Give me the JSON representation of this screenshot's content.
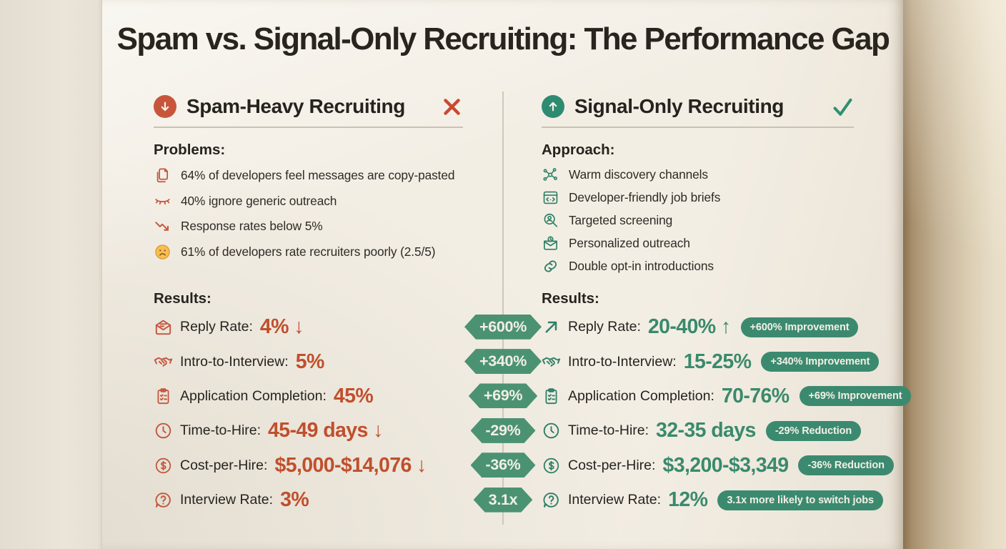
{
  "page_title": "Spam vs. Signal-Only Recruiting: The Performance Gap",
  "colors": {
    "paper": "#f3eee4",
    "accent_red": "#c7553c",
    "value_red": "#c04f2d",
    "accent_green": "#2e8b72",
    "value_green": "#3a8a6c",
    "badge_green": "#4b9273",
    "pill_green": "#3b8a70",
    "title_text": "#29241e"
  },
  "left": {
    "title": "Spam-Heavy Recruiting",
    "header_icon": "arrow-down-circle",
    "status_icon": "x-mark",
    "section1_title": "Problems:",
    "problems": [
      {
        "icon": "copy-document",
        "text": "64% of developers feel messages are copy-pasted"
      },
      {
        "icon": "closed-eye",
        "text": "40% ignore generic outreach"
      },
      {
        "icon": "trend-down",
        "text": "Response rates below 5%"
      },
      {
        "icon": "sad-face",
        "text": "61% of developers rate recruiters poorly (2.5/5)"
      }
    ],
    "section2_title": "Results:",
    "results": [
      {
        "icon": "mail-open",
        "label": "Reply Rate:",
        "value": "4% ↓"
      },
      {
        "icon": "handshake",
        "label": "Intro-to-Interview:",
        "value": "5%"
      },
      {
        "icon": "clipboard-check",
        "label": "Application Completion:",
        "value": "45%"
      },
      {
        "icon": "clock",
        "label": "Time-to-Hire:",
        "value": "45-49 days ↓"
      },
      {
        "icon": "dollar-circle",
        "label": "Cost-per-Hire:",
        "value": "$5,000-$14,076 ↓"
      },
      {
        "icon": "question-bubble",
        "label": "Interview Rate:",
        "value": "3%"
      }
    ]
  },
  "center_badges": [
    "+600%",
    "+340%",
    "+69%",
    "-29%",
    "-36%",
    "3.1x"
  ],
  "right": {
    "title": "Signal-Only Recruiting",
    "header_icon": "arrow-up-circle",
    "status_icon": "check-mark",
    "section1_title": "Approach:",
    "approach": [
      {
        "icon": "network",
        "text": "Warm discovery channels"
      },
      {
        "icon": "code-window",
        "text": "Developer-friendly job briefs"
      },
      {
        "icon": "person-search",
        "text": "Targeted screening"
      },
      {
        "icon": "mail-personal",
        "text": "Personalized outreach"
      },
      {
        "icon": "link-chain",
        "text": "Double opt-in introductions"
      }
    ],
    "section2_title": "Results:",
    "results": [
      {
        "icon": "arrow-up-right",
        "label": "Reply Rate:",
        "value": "20-40% ↑",
        "badge": "+600% Improvement"
      },
      {
        "icon": "handshake",
        "label": "Intro-to-Interview:",
        "value": "15-25%",
        "badge": "+340% Improvement"
      },
      {
        "icon": "clipboard-check",
        "label": "Application Completion:",
        "value": "70-76%",
        "badge": "+69% Improvement"
      },
      {
        "icon": "clock",
        "label": "Time-to-Hire:",
        "value": "32-35 days",
        "badge": "-29% Reduction"
      },
      {
        "icon": "dollar-circle",
        "label": "Cost-per-Hire:",
        "value": "$3,200-$3,349",
        "badge": "-36% Reduction"
      },
      {
        "icon": "question-bubble",
        "label": "Interview Rate:",
        "value": "12%",
        "badge": "3.1x more likely to switch jobs"
      }
    ]
  }
}
